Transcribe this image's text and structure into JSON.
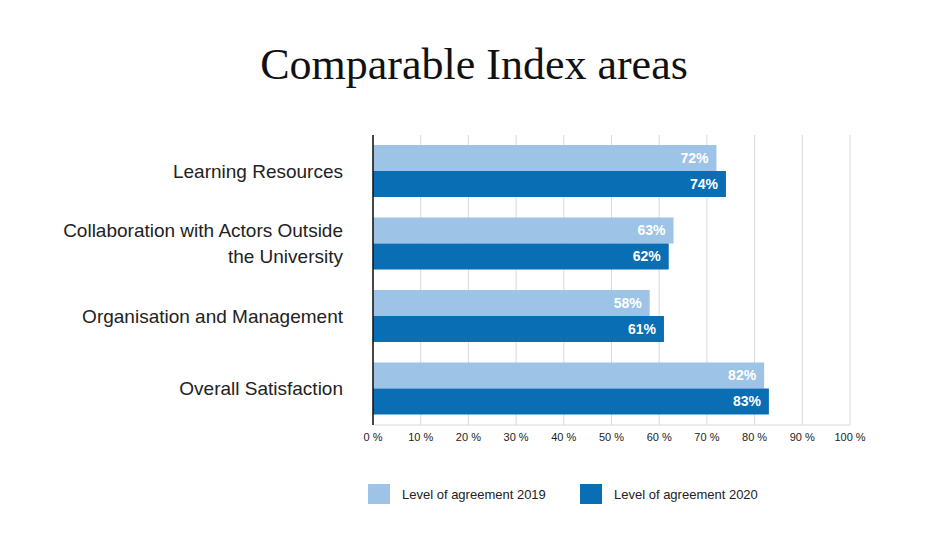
{
  "chart_data": {
    "type": "bar",
    "orientation": "horizontal",
    "title": "Comparable Index areas",
    "categories": [
      "Learning Resources",
      "Collaboration with Actors Outside the University",
      "Organisation and Management",
      "Overall Satisfaction"
    ],
    "series": [
      {
        "name": "Level of agreement 2019",
        "color": "#9dc3e6",
        "values": [
          72,
          63,
          58,
          82
        ],
        "value_labels": [
          "72%",
          "63%",
          "58%",
          "82%"
        ]
      },
      {
        "name": "Level of agreement 2020",
        "color": "#0a6eb4",
        "values": [
          74,
          62,
          61,
          83
        ],
        "value_labels": [
          "74%",
          "62%",
          "61%",
          "83%"
        ]
      }
    ],
    "xlim": [
      0,
      100
    ],
    "xticks": [
      {
        "value": 0,
        "label": "0 %"
      },
      {
        "value": 10,
        "label": "10 %"
      },
      {
        "value": 20,
        "label": "20 %"
      },
      {
        "value": 30,
        "label": "30 %"
      },
      {
        "value": 40,
        "label": "40 %"
      },
      {
        "value": 50,
        "label": "50 %"
      },
      {
        "value": 60,
        "label": "60 %"
      },
      {
        "value": 70,
        "label": "70 %"
      },
      {
        "value": 80,
        "label": "80 %"
      },
      {
        "value": 90,
        "label": "90 %"
      },
      {
        "value": 100,
        "label": "100 %"
      }
    ],
    "grid": true,
    "legend": "bottom",
    "data_labels": true
  }
}
